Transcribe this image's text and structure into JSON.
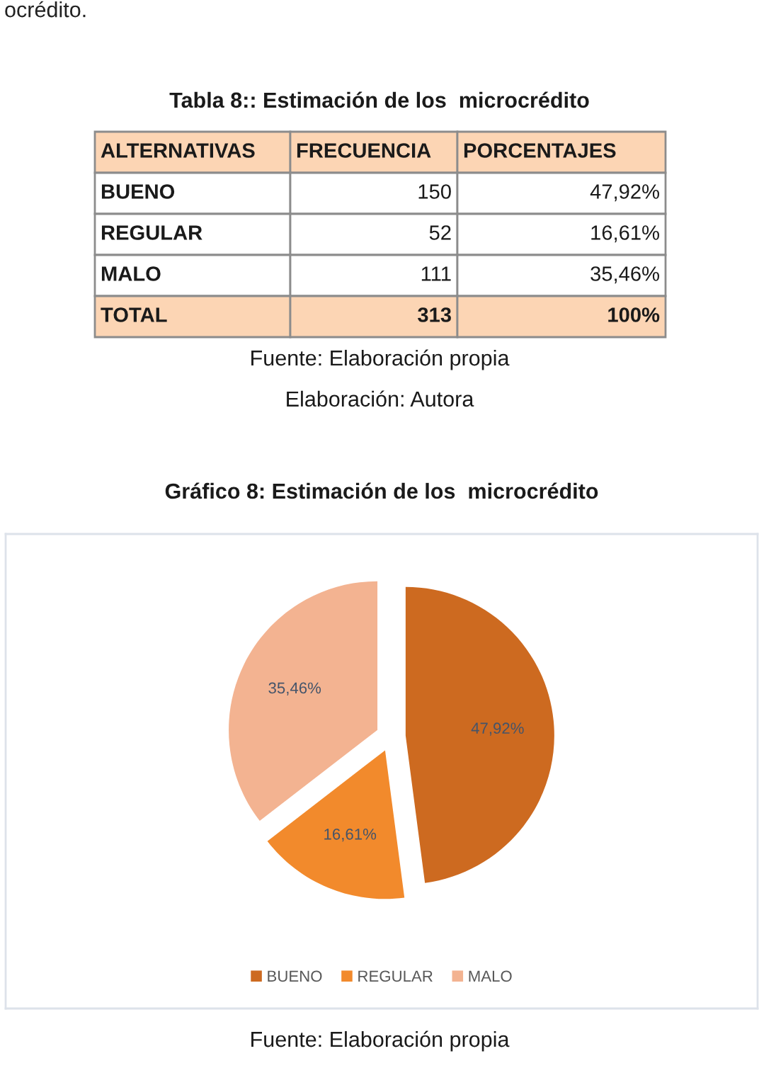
{
  "chart_data": [
    {
      "type": "other",
      "title": "Tabla 8:: Estimación de los  microcrédito",
      "xlabel": "ALTERNATIVAS",
      "categories": [
        "BUENO",
        "REGULAR",
        "MALO",
        "TOTAL"
      ],
      "data_labels": true,
      "series": [
        {
          "name": "FRECUENCIA",
          "values": [
            150,
            52,
            111,
            313
          ],
          "colors": [
            "#ffffff",
            "#ffffff",
            "#ffffff",
            "#fcd5b4"
          ]
        },
        {
          "name": "PORCENTAJES",
          "values": [
            47.92,
            16.61,
            35.46,
            100
          ],
          "value_labels": [
            "47,92%",
            "16,61%",
            "35,46%",
            "100%"
          ],
          "colors": [
            "#ffffff",
            "#ffffff",
            "#ffffff",
            "#fcd5b4"
          ]
        }
      ],
      "annotations": [
        "ocrédito.",
        "Fuente: Elaboración propia",
        "Elaboración: Autora"
      ]
    },
    {
      "type": "pie",
      "title": "Gráfico 8: Estimación de los  microcrédito",
      "categories": [
        "BUENO",
        "REGULAR",
        "MALO"
      ],
      "values": [
        47.92,
        16.61,
        35.46
      ],
      "colors": [
        "#cd6a20",
        "#f28a2c",
        "#f3b391"
      ],
      "value_labels": [
        "47,92%",
        "16,61%",
        "35,46%"
      ],
      "legend": "bottom",
      "annotations": [
        "Fuente: Elaboración propia"
      ]
    }
  ]
}
